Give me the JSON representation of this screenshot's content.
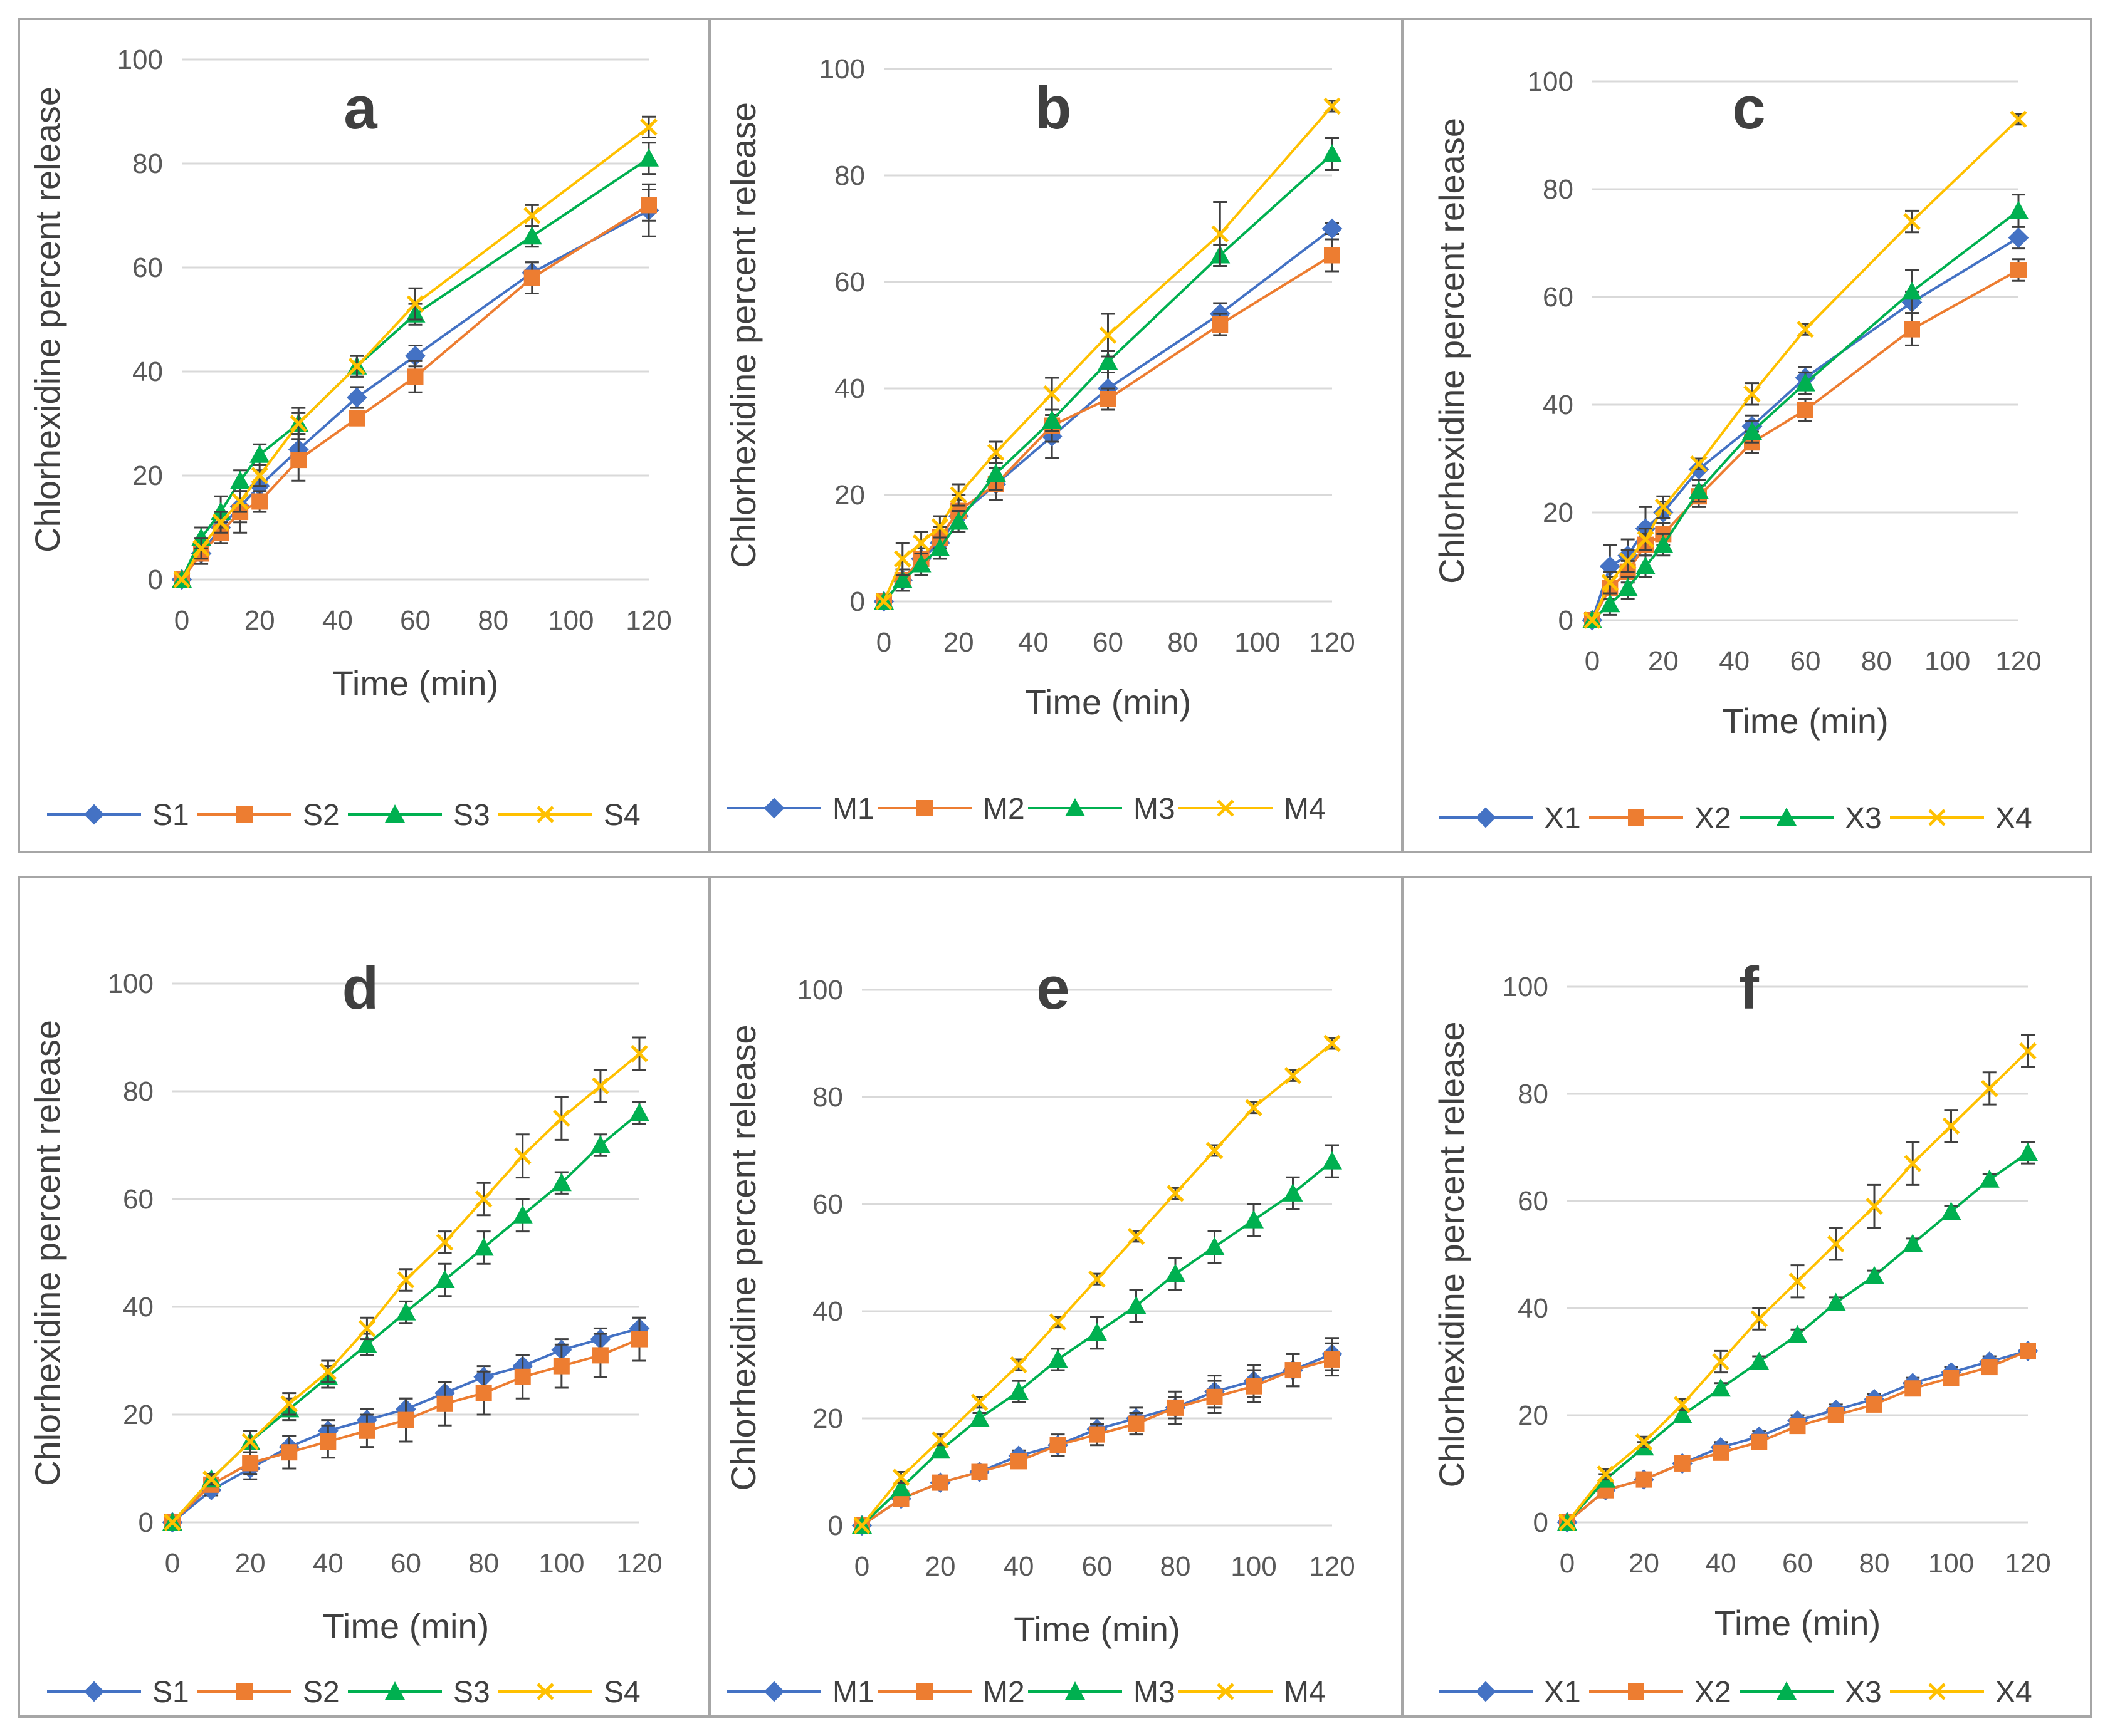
{
  "colors": {
    "series1": "#4472C4",
    "series2": "#ED7D31",
    "series3": "#00B050",
    "series4": "#FFC000",
    "error": "#404040"
  },
  "chart_data": [
    {
      "type": "line",
      "panel_label": "a",
      "xlabel": "Time (min)",
      "ylabel": "Chlorhexidine percent release",
      "xlim": [
        0,
        120
      ],
      "ylim": [
        0,
        100
      ],
      "xticks": [
        "0",
        "20",
        "40",
        "60",
        "80",
        "100",
        "120"
      ],
      "yticks": [
        "0",
        "20",
        "40",
        "60",
        "80",
        "100"
      ],
      "grid": "horizontal",
      "legend": "bottom",
      "x": [
        0,
        5,
        10,
        15,
        20,
        30,
        45,
        60,
        90,
        120
      ],
      "series": [
        {
          "name": "S1",
          "values": [
            0,
            5,
            10,
            14,
            18,
            25,
            35,
            43,
            59,
            71
          ],
          "errors": [
            0,
            2,
            3,
            3,
            3,
            3,
            2,
            2,
            2,
            5
          ]
        },
        {
          "name": "S2",
          "values": [
            0,
            5,
            9,
            13,
            15,
            23,
            31,
            39,
            58,
            72
          ],
          "errors": [
            0,
            2,
            2,
            4,
            2,
            4,
            1,
            3,
            3,
            3
          ]
        },
        {
          "name": "S3",
          "values": [
            0,
            8,
            13,
            19,
            24,
            30,
            41,
            51,
            66,
            81
          ],
          "errors": [
            0,
            2,
            3,
            2,
            2,
            3,
            2,
            2,
            2,
            3
          ]
        },
        {
          "name": "S4",
          "values": [
            0,
            6,
            11,
            15,
            20,
            30,
            41,
            53,
            70,
            87
          ],
          "errors": [
            0,
            2,
            2,
            2,
            2,
            2,
            2,
            3,
            2,
            2
          ]
        }
      ]
    },
    {
      "type": "line",
      "panel_label": "b",
      "xlabel": "Time (min)",
      "ylabel": "Chlorhexidine percent release",
      "xlim": [
        0,
        120
      ],
      "ylim": [
        0,
        100
      ],
      "xticks": [
        "0",
        "20",
        "40",
        "60",
        "80",
        "100",
        "120"
      ],
      "yticks": [
        "0",
        "20",
        "40",
        "60",
        "80",
        "100"
      ],
      "grid": "horizontal",
      "legend": "bottom",
      "x": [
        0,
        5,
        10,
        15,
        20,
        30,
        45,
        60,
        90,
        120
      ],
      "series": [
        {
          "name": "M1",
          "values": [
            0,
            4,
            8,
            11,
            16,
            22,
            31,
            40,
            54,
            70
          ],
          "errors": [
            0,
            2,
            2,
            2,
            3,
            3,
            4,
            3,
            2,
            1
          ]
        },
        {
          "name": "M2",
          "values": [
            0,
            4,
            8,
            12,
            17,
            22,
            33,
            38,
            52,
            65
          ],
          "errors": [
            0,
            2,
            2,
            2,
            3,
            3,
            3,
            2,
            2,
            3
          ]
        },
        {
          "name": "M3",
          "values": [
            0,
            4,
            7,
            10,
            15,
            24,
            34,
            45,
            65,
            84
          ],
          "errors": [
            0,
            2,
            2,
            2,
            2,
            3,
            2,
            2,
            2,
            3
          ]
        },
        {
          "name": "M4",
          "values": [
            0,
            8,
            11,
            14,
            20,
            28,
            39,
            50,
            69,
            93
          ],
          "errors": [
            0,
            3,
            2,
            2,
            2,
            2,
            3,
            4,
            6,
            1
          ]
        }
      ]
    },
    {
      "type": "line",
      "panel_label": "c",
      "xlabel": "Time (min)",
      "ylabel": "Chlorhexidine percent release",
      "xlim": [
        0,
        120
      ],
      "ylim": [
        0,
        100
      ],
      "xticks": [
        "0",
        "20",
        "40",
        "60",
        "80",
        "100",
        "120"
      ],
      "yticks": [
        "0",
        "20",
        "40",
        "60",
        "80",
        "100"
      ],
      "grid": "horizontal",
      "legend": "bottom",
      "x": [
        0,
        5,
        10,
        15,
        20,
        30,
        45,
        60,
        90,
        120
      ],
      "series": [
        {
          "name": "X1",
          "values": [
            0,
            10,
            12,
            17,
            20,
            28,
            36,
            45,
            59,
            71
          ],
          "errors": [
            0,
            4,
            3,
            4,
            2,
            2,
            2,
            2,
            2,
            2
          ]
        },
        {
          "name": "X2",
          "values": [
            0,
            6,
            9,
            14,
            16,
            23,
            33,
            39,
            54,
            65
          ],
          "errors": [
            0,
            2,
            2,
            2,
            2,
            2,
            2,
            2,
            3,
            2
          ]
        },
        {
          "name": "X3",
          "values": [
            0,
            3,
            6,
            10,
            14,
            24,
            35,
            44,
            61,
            76
          ],
          "errors": [
            0,
            2,
            2,
            2,
            2,
            2,
            2,
            2,
            4,
            3
          ]
        },
        {
          "name": "X4",
          "values": [
            0,
            7,
            11,
            15,
            21,
            29,
            42,
            54,
            74,
            93
          ],
          "errors": [
            0,
            2,
            2,
            2,
            2,
            1,
            2,
            1,
            2,
            1
          ]
        }
      ]
    },
    {
      "type": "line",
      "panel_label": "d",
      "xlabel": "Time (min)",
      "ylabel": "Chlorhexidine percent release",
      "xlim": [
        0,
        120
      ],
      "ylim": [
        0,
        100
      ],
      "xticks": [
        "0",
        "20",
        "40",
        "60",
        "80",
        "100",
        "120"
      ],
      "yticks": [
        "0",
        "20",
        "40",
        "60",
        "80",
        "100"
      ],
      "grid": "horizontal",
      "legend": "bottom",
      "x": [
        0,
        10,
        20,
        30,
        40,
        50,
        60,
        70,
        80,
        90,
        100,
        110,
        120
      ],
      "series": [
        {
          "name": "S1",
          "values": [
            0,
            6,
            10,
            14,
            17,
            19,
            21,
            24,
            27,
            29,
            32,
            34,
            36
          ],
          "errors": [
            0,
            1,
            2,
            2,
            2,
            2,
            2,
            2,
            2,
            2,
            2,
            2,
            2
          ]
        },
        {
          "name": "S2",
          "values": [
            0,
            7,
            11,
            13,
            15,
            17,
            19,
            22,
            24,
            27,
            29,
            31,
            34
          ],
          "errors": [
            0,
            1,
            2,
            3,
            3,
            3,
            4,
            4,
            4,
            4,
            4,
            4,
            4
          ]
        },
        {
          "name": "S3",
          "values": [
            0,
            8,
            15,
            21,
            27,
            33,
            39,
            45,
            51,
            57,
            63,
            70,
            76
          ],
          "errors": [
            0,
            1,
            2,
            2,
            2,
            2,
            2,
            3,
            3,
            3,
            2,
            2,
            2
          ]
        },
        {
          "name": "S4",
          "values": [
            0,
            8,
            15,
            22,
            28,
            36,
            45,
            52,
            60,
            68,
            75,
            81,
            87
          ],
          "errors": [
            0,
            1,
            2,
            2,
            2,
            2,
            2,
            2,
            3,
            4,
            4,
            3,
            3
          ]
        }
      ]
    },
    {
      "type": "line",
      "panel_label": "e",
      "xlabel": "Time (min)",
      "ylabel": "Chlorhexidine percent release",
      "xlim": [
        0,
        120
      ],
      "ylim": [
        0,
        100
      ],
      "xticks": [
        "0",
        "20",
        "40",
        "60",
        "80",
        "100",
        "120"
      ],
      "yticks": [
        "0",
        "20",
        "40",
        "60",
        "80",
        "100"
      ],
      "grid": "horizontal",
      "legend": "bottom",
      "x": [
        0,
        10,
        20,
        30,
        40,
        50,
        60,
        70,
        80,
        90,
        100,
        110,
        120
      ],
      "series": [
        {
          "name": "M1",
          "values": [
            0,
            5,
            8,
            10,
            13,
            15,
            18,
            20,
            22,
            25,
            27,
            29,
            32
          ],
          "errors": [
            0,
            1,
            1,
            1,
            1,
            2,
            2,
            2,
            3,
            3,
            3,
            3,
            3
          ]
        },
        {
          "name": "M2",
          "values": [
            0,
            5,
            8,
            10,
            12,
            15,
            17,
            19,
            22,
            24,
            26,
            29,
            31
          ],
          "errors": [
            0,
            1,
            1,
            1,
            1,
            1,
            2,
            2,
            2,
            3,
            3,
            3,
            3
          ]
        },
        {
          "name": "M3",
          "values": [
            0,
            7,
            14,
            20,
            25,
            31,
            36,
            41,
            47,
            52,
            57,
            62,
            68
          ],
          "errors": [
            0,
            1,
            1,
            1,
            2,
            2,
            3,
            3,
            3,
            3,
            3,
            3,
            3
          ]
        },
        {
          "name": "M4",
          "values": [
            0,
            9,
            16,
            23,
            30,
            38,
            46,
            54,
            62,
            70,
            78,
            84,
            90
          ],
          "errors": [
            0,
            1,
            1,
            1,
            1,
            1,
            1,
            1,
            1,
            1,
            1,
            1,
            1
          ]
        }
      ]
    },
    {
      "type": "line",
      "panel_label": "f",
      "xlabel": "Time (min)",
      "ylabel": "Chlorhexidine percent release",
      "xlim": [
        0,
        120
      ],
      "ylim": [
        0,
        100
      ],
      "xticks": [
        "0",
        "20",
        "40",
        "60",
        "80",
        "100",
        "120"
      ],
      "yticks": [
        "0",
        "20",
        "40",
        "60",
        "80",
        "100"
      ],
      "grid": "horizontal",
      "legend": "bottom",
      "x": [
        0,
        10,
        20,
        30,
        40,
        50,
        60,
        70,
        80,
        90,
        100,
        110,
        120
      ],
      "series": [
        {
          "name": "X1",
          "values": [
            0,
            6,
            8,
            11,
            14,
            16,
            19,
            21,
            23,
            26,
            28,
            30,
            32
          ],
          "errors": [
            0,
            1,
            1,
            1,
            1,
            1,
            1,
            1,
            1,
            1,
            1,
            1,
            1
          ]
        },
        {
          "name": "X2",
          "values": [
            0,
            6,
            8,
            11,
            13,
            15,
            18,
            20,
            22,
            25,
            27,
            29,
            32
          ],
          "errors": [
            0,
            1,
            1,
            1,
            1,
            1,
            1,
            1,
            1,
            1,
            1,
            1,
            1
          ]
        },
        {
          "name": "X3",
          "values": [
            0,
            8,
            14,
            20,
            25,
            30,
            35,
            41,
            46,
            52,
            58,
            64,
            69
          ],
          "errors": [
            0,
            1,
            1,
            1,
            1,
            1,
            1,
            1,
            1,
            1,
            1,
            1,
            2
          ]
        },
        {
          "name": "X4",
          "values": [
            0,
            9,
            15,
            22,
            30,
            38,
            45,
            52,
            59,
            67,
            74,
            81,
            88
          ],
          "errors": [
            0,
            1,
            1,
            1,
            2,
            2,
            3,
            3,
            4,
            4,
            3,
            3,
            3
          ]
        }
      ]
    }
  ]
}
